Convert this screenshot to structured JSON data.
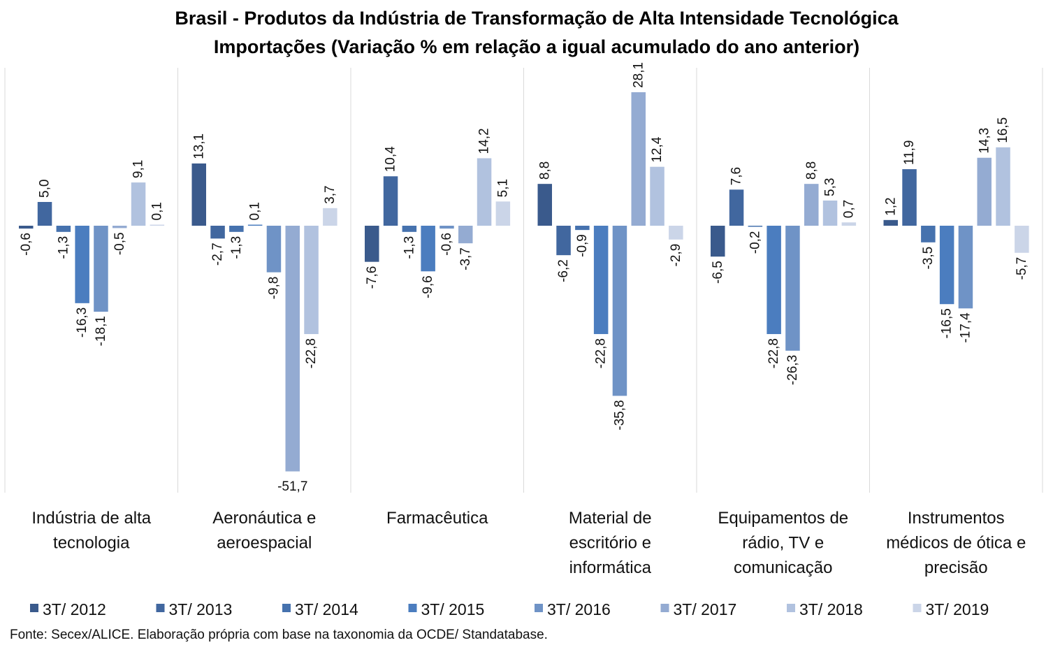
{
  "chart_data": {
    "type": "bar",
    "title": "Brasil - Produtos da Indústria de Transformação de Alta Intensidade Tecnológica",
    "subtitle": "Importações (Variação % em relação a igual acumulado do ano anterior)",
    "categories": [
      [
        "Indústria de alta",
        "tecnologia"
      ],
      [
        "Aeronáutica e",
        "aeroespacial"
      ],
      [
        "Farmacêutica"
      ],
      [
        "Material de",
        "escritório e",
        "informática"
      ],
      [
        "Equipamentos de",
        "rádio, TV e",
        "comunicação"
      ],
      [
        "Instrumentos",
        "médicos de ótica e",
        "precisão"
      ]
    ],
    "series": [
      {
        "name": "3T/ 2012",
        "color": "#3a5a8c",
        "values": [
          -0.6,
          13.1,
          -7.6,
          8.8,
          -6.5,
          1.2
        ],
        "labels": [
          "-0,6",
          "13,1",
          "-7,6",
          "8,8",
          "-6,5",
          "1,2"
        ]
      },
      {
        "name": "3T/ 2013",
        "color": "#41679f",
        "values": [
          5.0,
          -2.7,
          10.4,
          -6.2,
          7.6,
          11.9
        ],
        "labels": [
          "5,0",
          "-2,7",
          "10,4",
          "-6,2",
          "7,6",
          "11,9"
        ]
      },
      {
        "name": "3T/ 2014",
        "color": "#4672ae",
        "values": [
          -1.3,
          -1.3,
          -1.3,
          -0.9,
          -0.2,
          -3.5
        ],
        "labels": [
          "-1,3",
          "-1,3",
          "-1,3",
          "-0,9",
          "-0,2",
          "-3,5"
        ]
      },
      {
        "name": "3T/ 2015",
        "color": "#4b7dbf",
        "values": [
          -16.3,
          0.1,
          -9.6,
          -22.8,
          -22.8,
          -16.5
        ],
        "labels": [
          "-16,3",
          "0,1",
          "-9,6",
          "-22,8",
          "-22,8",
          "-16,5"
        ]
      },
      {
        "name": "3T/ 2016",
        "color": "#6f93c6",
        "values": [
          -18.1,
          -9.8,
          -0.6,
          -35.8,
          -26.3,
          -17.4
        ],
        "labels": [
          "-18,1",
          "-9,8",
          "-0,6",
          "-35,8",
          "-26,3",
          "-17,4"
        ]
      },
      {
        "name": "3T/ 2017",
        "color": "#94abd2",
        "values": [
          -0.5,
          -51.7,
          -3.7,
          28.1,
          8.8,
          14.3
        ],
        "labels": [
          "-0,5",
          "-51,7",
          "-3,7",
          "28,1",
          "8,8",
          "14,3"
        ]
      },
      {
        "name": "3T/ 2018",
        "color": "#b1c2df",
        "values": [
          9.1,
          -22.8,
          14.2,
          12.4,
          5.3,
          16.5
        ],
        "labels": [
          "9,1",
          "-22,8",
          "14,2",
          "12,4",
          "5,3",
          "16,5"
        ]
      },
      {
        "name": "3T/ 2019",
        "color": "#cbd5e8",
        "values": [
          0.1,
          3.7,
          5.1,
          -2.9,
          0.7,
          -5.7
        ],
        "labels": [
          "0,1",
          "3,7",
          "5,1",
          "-2,9",
          "0,7",
          "-5,7"
        ]
      }
    ],
    "ylim": [
      -56,
      33
    ],
    "grid": false,
    "legend_position": "bottom",
    "source": "Fonte: Secex/ALICE. Elaboração própria com base na taxonomia da OCDE/ Standatabase."
  }
}
